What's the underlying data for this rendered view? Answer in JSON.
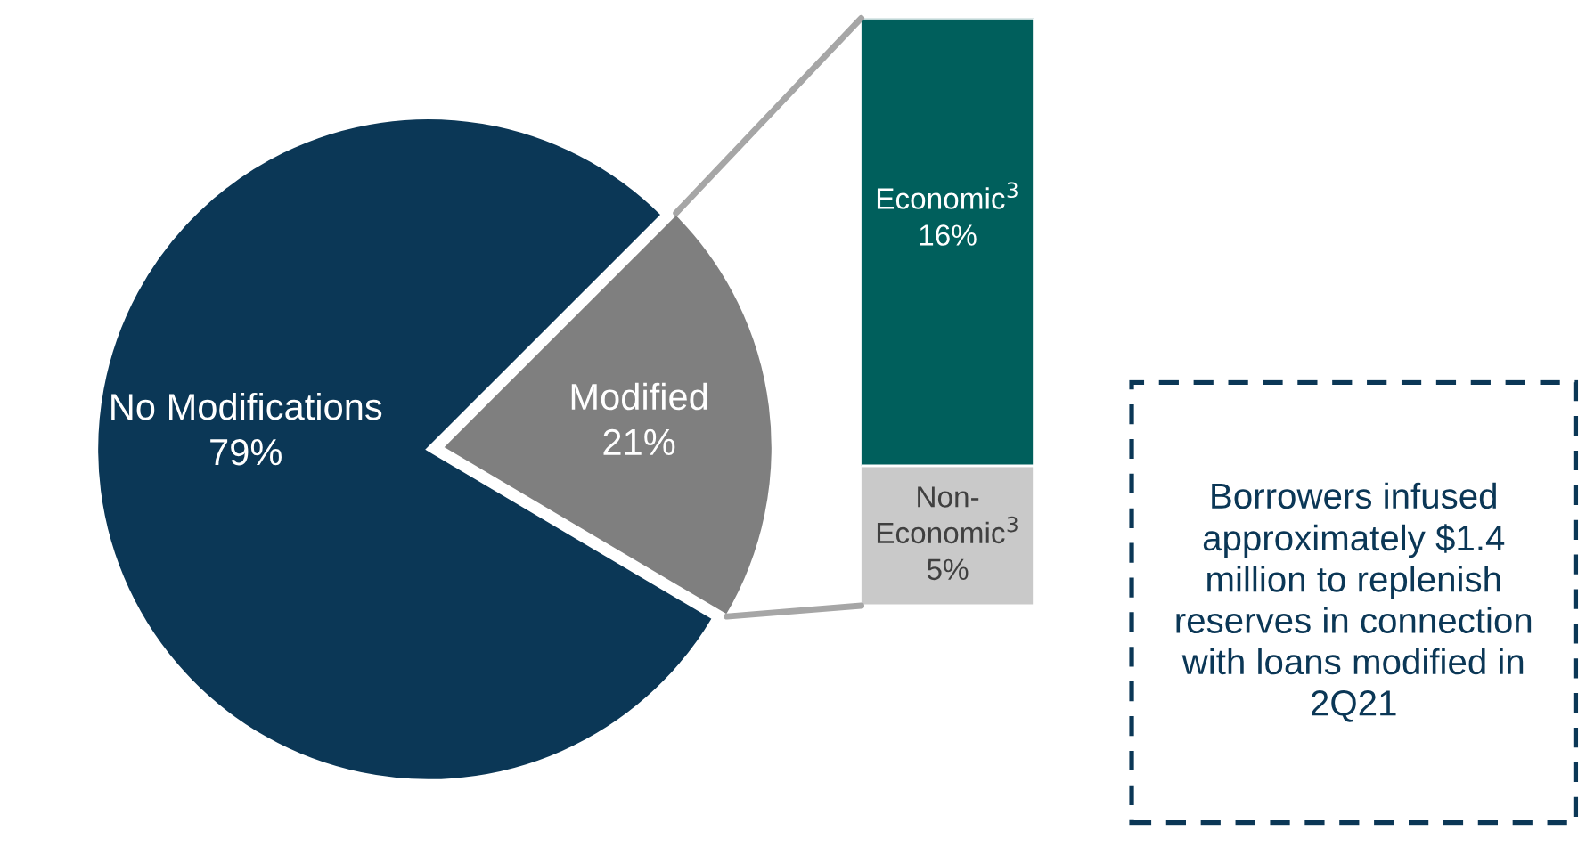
{
  "chart_data": [
    {
      "type": "pie",
      "categories": [
        "No Modifications",
        "Modified"
      ],
      "values": [
        79,
        21
      ],
      "colors": [
        "#0b3756",
        "#7f7f7f"
      ],
      "value_labels": [
        "79%",
        "21%"
      ]
    },
    {
      "type": "bar",
      "stacked": true,
      "categories": [
        null
      ],
      "series": [
        {
          "name": "Non-Economic$^{3}$",
          "color": "#c9c9c9",
          "values": [
            5
          ],
          "value_labels": [
            "5%"
          ]
        },
        {
          "name": "Economic$^{3}$",
          "color": "#005f5c",
          "values": [
            16
          ],
          "value_labels": [
            "16%"
          ]
        }
      ]
    },
    {
      "type": "other",
      "annotations": [
        "Borrowers infused approximately $1.4 million to replenish reserves in connection with loans modified in 2Q21"
      ]
    }
  ]
}
